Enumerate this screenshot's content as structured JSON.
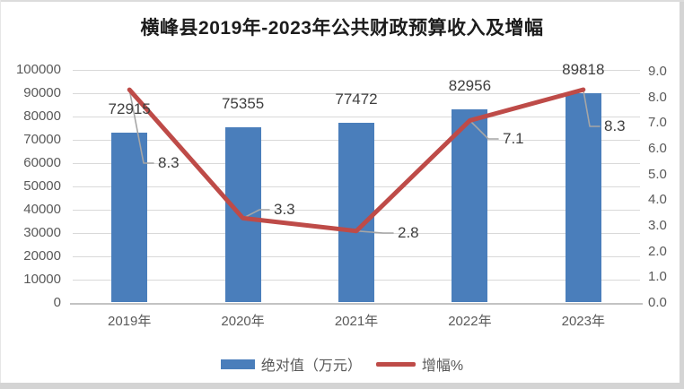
{
  "chart_data": {
    "type": "bar",
    "combo": "bar+line",
    "title": "横峰县2019年-2023年公共财政预算收入及增幅",
    "categories": [
      "2019年",
      "2020年",
      "2021年",
      "2022年",
      "2023年"
    ],
    "series": [
      {
        "name": "绝对值（万元）",
        "kind": "bar",
        "axis": "left",
        "color": "#4a7ebb",
        "values": [
          72915,
          75355,
          77472,
          82956,
          89818
        ],
        "labels": [
          "72915",
          "75355",
          "77472",
          "82956",
          "89818"
        ]
      },
      {
        "name": "增幅%",
        "kind": "line",
        "axis": "right",
        "color": "#be4b48",
        "values": [
          8.3,
          3.3,
          2.8,
          7.1,
          8.3
        ],
        "labels": [
          "8.3",
          "3.3",
          "2.8",
          "7.1",
          "8.3"
        ]
      }
    ],
    "left_axis": {
      "min": 0,
      "max": 100000,
      "ticks": [
        "100000",
        "90000",
        "80000",
        "70000",
        "60000",
        "50000",
        "40000",
        "30000",
        "20000",
        "10000",
        "0"
      ]
    },
    "right_axis": {
      "min": 0.0,
      "max": 9.0,
      "ticks": [
        "9.0",
        "8.0",
        "7.0",
        "6.0",
        "5.0",
        "4.0",
        "3.0",
        "2.0",
        "1.0",
        "0.0"
      ]
    },
    "grid": true,
    "legend_position": "bottom",
    "legend": [
      {
        "label": "绝对值（万元）",
        "color": "#4a7ebb",
        "kind": "bar"
      },
      {
        "label": "增幅%",
        "color": "#be4b48",
        "kind": "line"
      }
    ]
  },
  "colors": {
    "bar": "#4a7ebb",
    "line": "#be4b48",
    "gridline": "#d9d9d9",
    "axis_line": "#c3c3c3",
    "axis_text": "#595959",
    "data_label": "#3f3f3f",
    "leader": "#a6a6a6",
    "title_text": "#1c1c1c"
  }
}
